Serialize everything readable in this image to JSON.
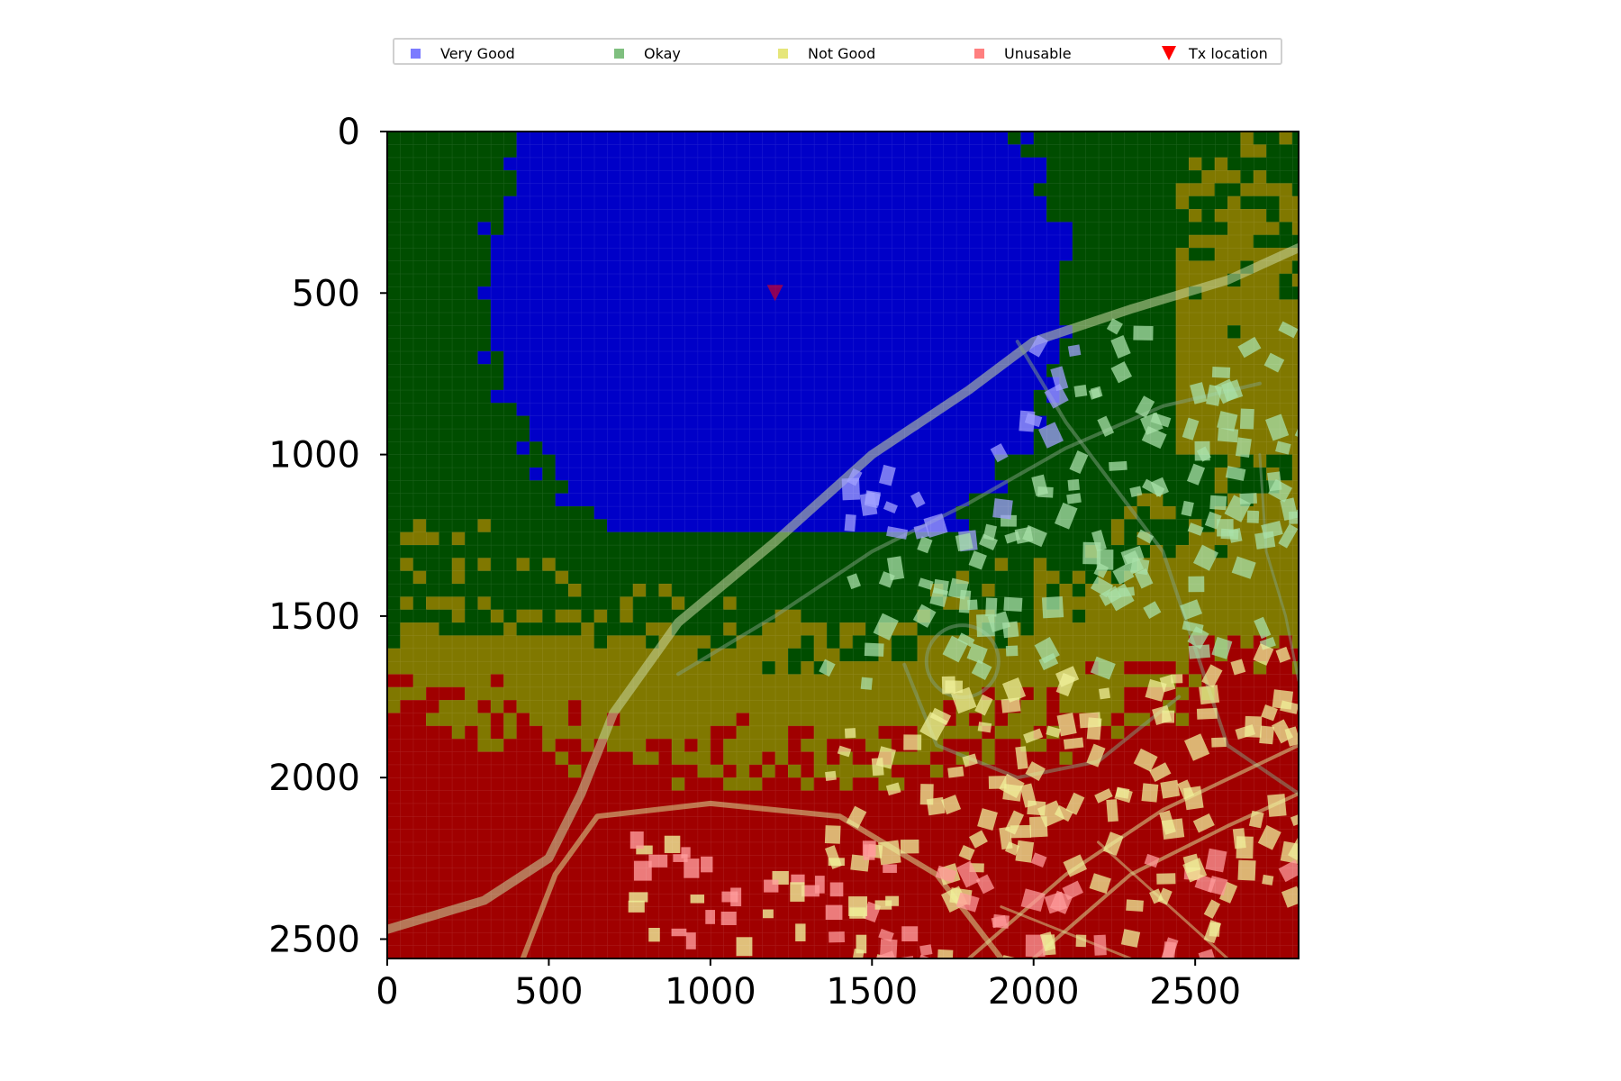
{
  "chart_data": {
    "type": "heatmap",
    "title": "",
    "xlabel": "",
    "ylabel": "",
    "xlim": [
      0,
      2820
    ],
    "ylim": [
      2560,
      0
    ],
    "xticks": [
      0,
      500,
      1000,
      1500,
      2000,
      2500
    ],
    "yticks": [
      0,
      500,
      1000,
      1500,
      2000,
      2500
    ],
    "grid_cell_size": 40,
    "grid": true,
    "legend_placement": "top-center",
    "legend": [
      {
        "label": "Very Good",
        "color": "#7b7bff",
        "marker": "square"
      },
      {
        "label": "Okay",
        "color": "#7fbf7f",
        "marker": "square"
      },
      {
        "label": "Not Good",
        "color": "#e6e67a",
        "marker": "square"
      },
      {
        "label": "Unusable",
        "color": "#ff7f7f",
        "marker": "square"
      },
      {
        "label": "Tx location",
        "color": "#ff0000",
        "marker": "triangle-down"
      }
    ],
    "categories": [
      "Very Good",
      "Okay",
      "Not Good",
      "Unusable"
    ],
    "region_colors": [
      "#0000c8",
      "#004d00",
      "#807800",
      "#a00000"
    ],
    "tx_location": {
      "x": 1200,
      "y": 500
    },
    "coverage_description_regions": {
      "very_good_circle_center": [
        1200,
        500
      ],
      "very_good_circle_radius": 900
    }
  }
}
